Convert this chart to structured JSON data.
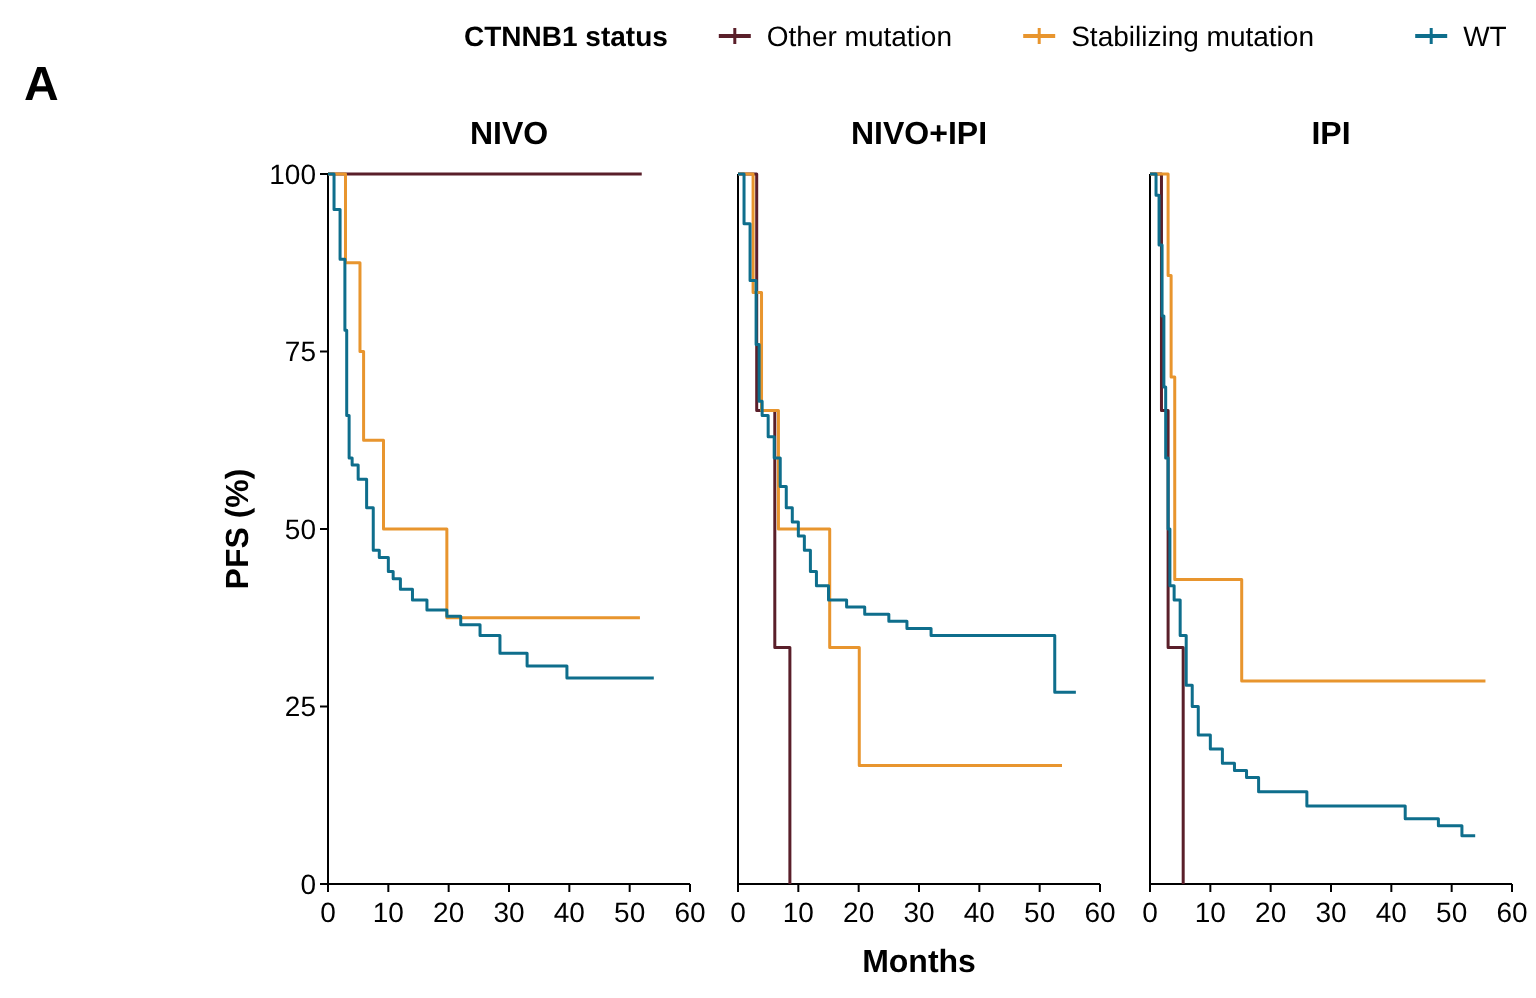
{
  "chart_data": [
    {
      "type": "step",
      "title": "NIVO",
      "ylabel": "PFS (%)",
      "legend": "top",
      "legend_title": "CTNNB1 status",
      "annotations": [
        "A"
      ],
      "xlim": [
        0,
        60
      ],
      "xticks": [
        0,
        10,
        20,
        30,
        40,
        50,
        60
      ],
      "ylim": [
        0,
        100
      ],
      "yticks": [
        0,
        25,
        50,
        75,
        100
      ],
      "series": [
        {
          "name": "Other mutation",
          "color": "#5a1f2a",
          "x": [
            0,
            52
          ],
          "values": [
            100,
            100
          ]
        },
        {
          "name": "Stabilizing mutation",
          "color": "#e8952e",
          "x": [
            0,
            2.9,
            5.3,
            5.9,
            9.2,
            19.7,
            51.7
          ],
          "values": [
            100,
            87.5,
            75,
            62.5,
            50,
            37.5,
            37.5
          ]
        },
        {
          "name": "WT",
          "color": "#0e6e8c",
          "x": [
            0,
            1,
            2,
            2.8,
            3.1,
            3.5,
            4,
            5,
            6.4,
            7.5,
            8.5,
            10,
            10.8,
            12,
            14,
            16.4,
            19.7,
            22,
            25.2,
            28.5,
            33,
            39.6,
            54
          ],
          "values": [
            100,
            95,
            88,
            78,
            66,
            60,
            59,
            57,
            53,
            47,
            46,
            44,
            43,
            41.5,
            40,
            38.6,
            37.7,
            36.5,
            35,
            32.5,
            30.7,
            29,
            29
          ]
        }
      ]
    },
    {
      "type": "step",
      "title": "NIVO+IPI",
      "xlabel": "Months",
      "tick_labels": "x",
      "xlim": [
        0,
        60
      ],
      "xticks": [
        0,
        10,
        20,
        30,
        40,
        50,
        60
      ],
      "ylim": [
        0,
        100
      ],
      "yticks": [
        0,
        25,
        50,
        75,
        100
      ],
      "series": [
        {
          "color": "#5a1f2a",
          "x": [
            0,
            3.1,
            6.1,
            8.6
          ],
          "values": [
            100,
            66.7,
            33.3,
            0
          ]
        },
        {
          "color": "#e8952e",
          "x": [
            0,
            2.5,
            3.9,
            6.7,
            15.2,
            20.1,
            53.7
          ],
          "values": [
            100,
            83.3,
            66.7,
            50,
            33.3,
            16.7,
            16.7
          ]
        },
        {
          "color": "#0e6e8c",
          "x": [
            0,
            1,
            2,
            3,
            3.5,
            4,
            5,
            6,
            7,
            8,
            9,
            10,
            11,
            12,
            13,
            15,
            18,
            21,
            25,
            28,
            32,
            52.5,
            56
          ],
          "values": [
            100,
            93,
            85,
            76,
            68,
            66,
            63,
            60,
            56,
            53,
            51,
            49,
            47,
            44,
            42,
            40,
            39,
            38,
            37,
            36,
            35,
            27,
            27
          ]
        }
      ]
    },
    {
      "type": "step",
      "title": "IPI",
      "tick_labels": "x",
      "xlim": [
        0,
        60
      ],
      "xticks": [
        0,
        10,
        20,
        30,
        40,
        50,
        60
      ],
      "ylim": [
        0,
        100
      ],
      "yticks": [
        0,
        25,
        50,
        75,
        100
      ],
      "series": [
        {
          "color": "#5a1f2a",
          "x": [
            0,
            1.9,
            3,
            5.5
          ],
          "values": [
            100,
            66.7,
            33.3,
            0
          ]
        },
        {
          "color": "#e8952e",
          "x": [
            0,
            3,
            3.5,
            4.1,
            15.2,
            55.6
          ],
          "values": [
            100,
            85.7,
            71.4,
            42.9,
            28.6,
            28.6
          ]
        },
        {
          "color": "#0e6e8c",
          "x": [
            0,
            1,
            1.5,
            2,
            2.3,
            2.6,
            3,
            3.3,
            4,
            5,
            6,
            7,
            8,
            10,
            12,
            14,
            16,
            18,
            26,
            42.3,
            47.8,
            51.7,
            53.9
          ],
          "values": [
            100,
            97,
            90,
            80,
            70,
            60,
            50,
            42,
            40,
            35,
            28,
            25,
            21,
            19,
            17,
            16,
            15,
            13,
            11,
            9.2,
            8.2,
            6.8,
            6.8
          ]
        }
      ]
    }
  ]
}
